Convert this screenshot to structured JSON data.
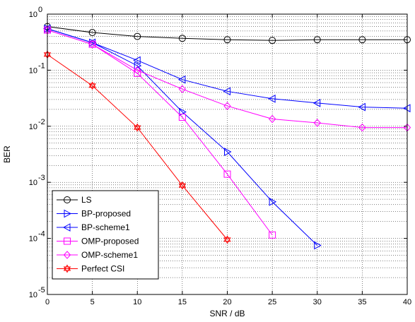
{
  "chart_data": {
    "type": "line",
    "xlabel": "SNR / dB",
    "ylabel": "BER",
    "xlim": [
      0,
      40
    ],
    "ylim": [
      1e-05,
      1
    ],
    "yscale": "log",
    "grid": true,
    "legend_placement": "bottom-left",
    "x_ticks": [
      "0",
      "5",
      "10",
      "15",
      "20",
      "25",
      "30",
      "35",
      "40"
    ],
    "y_ticks": [
      {
        "base": "10",
        "exp": "0"
      },
      {
        "base": "10",
        "exp": "-1"
      },
      {
        "base": "10",
        "exp": "-2"
      },
      {
        "base": "10",
        "exp": "-3"
      },
      {
        "base": "10",
        "exp": "-4"
      },
      {
        "base": "10",
        "exp": "-5"
      }
    ],
    "series": [
      {
        "name": "LS",
        "color": "#000000",
        "marker": "circle",
        "x": [
          0,
          5,
          10,
          15,
          20,
          25,
          30,
          35,
          40
        ],
        "y": [
          0.6,
          0.47,
          0.4,
          0.37,
          0.35,
          0.34,
          0.35,
          0.35,
          0.35
        ]
      },
      {
        "name": "BP-proposed",
        "color": "#0000ff",
        "marker": "triangle-right",
        "x": [
          0,
          5,
          10,
          15,
          20,
          25,
          30
        ],
        "y": [
          0.55,
          0.31,
          0.12,
          0.018,
          0.0035,
          0.00045,
          7.5e-05
        ]
      },
      {
        "name": "BP-scheme1",
        "color": "#0000ff",
        "marker": "triangle-left",
        "x": [
          0,
          5,
          10,
          15,
          20,
          25,
          30,
          35,
          40
        ],
        "y": [
          0.55,
          0.31,
          0.15,
          0.068,
          0.042,
          0.031,
          0.026,
          0.022,
          0.021
        ]
      },
      {
        "name": "OMP-proposed",
        "color": "#ff00ff",
        "marker": "square",
        "x": [
          0,
          5,
          10,
          15,
          20,
          25
        ],
        "y": [
          0.52,
          0.29,
          0.088,
          0.0145,
          0.0014,
          0.000115
        ]
      },
      {
        "name": "OMP-scheme1",
        "color": "#ff00ff",
        "marker": "diamond",
        "x": [
          0,
          5,
          10,
          15,
          20,
          25,
          30,
          35,
          40
        ],
        "y": [
          0.52,
          0.29,
          0.1,
          0.046,
          0.023,
          0.0135,
          0.0115,
          0.0095,
          0.0095
        ]
      },
      {
        "name": "Perfect CSI",
        "color": "#ff0000",
        "marker": "hexagram",
        "x": [
          0,
          5,
          10,
          15,
          20
        ],
        "y": [
          0.19,
          0.053,
          0.0095,
          0.00088,
          9.5e-05
        ]
      }
    ]
  }
}
